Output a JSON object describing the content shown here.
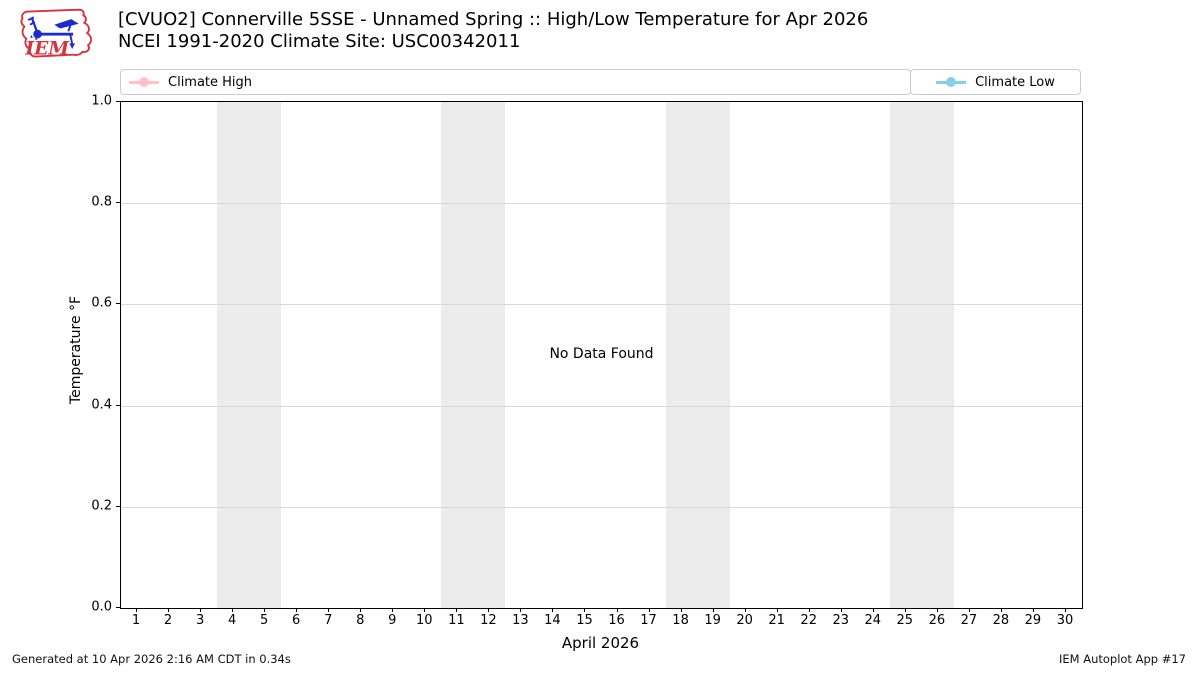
{
  "header": {
    "title_line1": "[CVUO2] Connerville 5SSE - Unnamed Spring :: High/Low Temperature for Apr 2026",
    "title_line2": "NCEI 1991-2020 Climate Site: USC00342011",
    "logo_text": "IEM"
  },
  "legend": {
    "items": [
      {
        "label": "Climate High",
        "color": "#ffc0cb"
      },
      {
        "label": "Climate Low",
        "color": "#87ceeb"
      }
    ]
  },
  "chart_data": {
    "type": "line",
    "title": "[CVUO2] Connerville 5SSE - Unnamed Spring :: High/Low Temperature for Apr 2026",
    "subtitle": "NCEI 1991-2020 Climate Site: USC00342011",
    "xlabel": "April 2026",
    "ylabel": "Temperature °F",
    "xlim": [
      0.5,
      30.5
    ],
    "ylim": [
      0.0,
      1.0
    ],
    "x_ticks": [
      1,
      2,
      3,
      4,
      5,
      6,
      7,
      8,
      9,
      10,
      11,
      12,
      13,
      14,
      15,
      16,
      17,
      18,
      19,
      20,
      21,
      22,
      23,
      24,
      25,
      26,
      27,
      28,
      29,
      30
    ],
    "y_ticks": [
      "0.0",
      "0.2",
      "0.4",
      "0.6",
      "0.8",
      "1.0"
    ],
    "grid": true,
    "legend_position": "top",
    "series": [
      {
        "name": "Climate High",
        "color": "#ffc0cb",
        "x": [],
        "values": []
      },
      {
        "name": "Climate Low",
        "color": "#87ceeb",
        "x": [],
        "values": []
      }
    ],
    "no_data_message": "No Data Found",
    "shaded_bands_x": [
      [
        3.5,
        5.5
      ],
      [
        10.5,
        12.5
      ],
      [
        17.5,
        19.5
      ],
      [
        24.5,
        26.5
      ]
    ],
    "shaded_band_color": "#ececec"
  },
  "footer": {
    "left": "Generated at 10 Apr 2026 2:16 AM CDT in 0.34s",
    "right": "IEM Autoplot App #17"
  }
}
